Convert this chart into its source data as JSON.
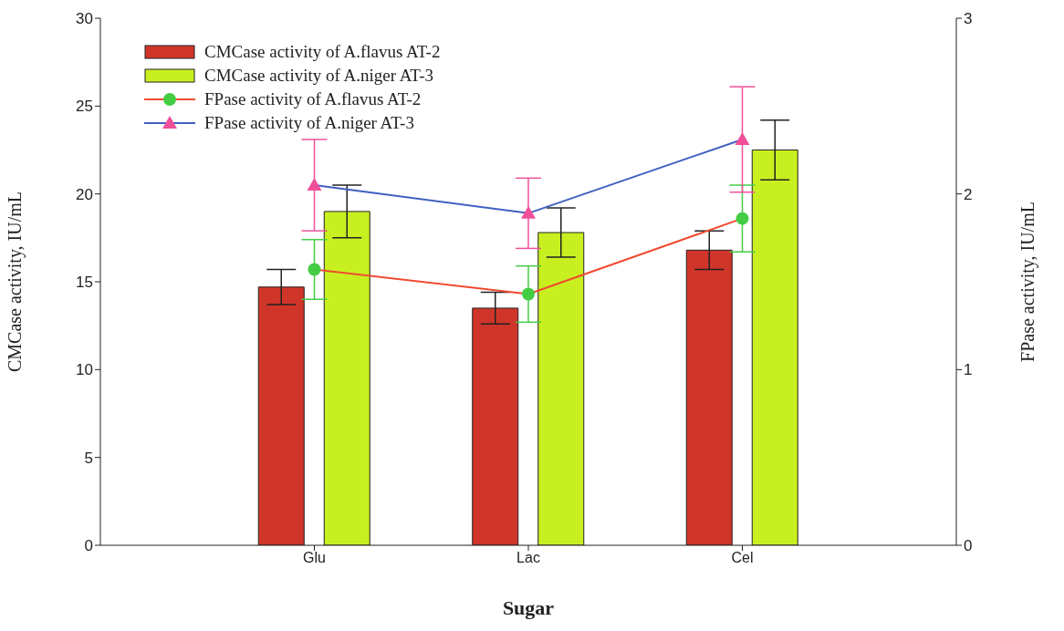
{
  "chart_data": {
    "type": "bar",
    "xlabel": "Sugar",
    "ylabel": "CMCase activity, IU/mL",
    "y2label": "FPase activity, IU/mL",
    "categories": [
      "Glu",
      "Lac",
      "Cel"
    ],
    "series": [
      {
        "name": "CMCase activity of A.flavus AT-2",
        "color": "#d0352a",
        "values": [
          14.7,
          13.5,
          16.8
        ],
        "errors": [
          1.0,
          0.9,
          1.1
        ]
      },
      {
        "name": "CMCase activity of A.niger AT-3",
        "color": "#c8f020",
        "values": [
          19.0,
          17.8,
          22.5
        ],
        "errors": [
          1.5,
          1.4,
          1.7
        ]
      },
      {
        "name": "FPase activity of A.flavus AT-2",
        "type": "line",
        "axis": "y2",
        "marker": "circle",
        "color": "#f04a30",
        "colors": [
          "#44cc44",
          "#44cc44",
          "#44cc44"
        ],
        "values": [
          1.57,
          1.43,
          1.86
        ],
        "errors": [
          0.17,
          0.16,
          0.19
        ]
      },
      {
        "name": "FPase activity of A.niger AT-3",
        "type": "line",
        "axis": "y2",
        "marker": "triangle",
        "color": "#4060c0",
        "colors": [
          "#f0509a",
          "#f0509a",
          "#f0509a"
        ],
        "values": [
          2.05,
          1.89,
          2.31
        ],
        "errors": [
          0.26,
          0.2,
          0.3
        ]
      }
    ],
    "ylim": [
      0,
      30
    ],
    "yticks": [
      0,
      5,
      10,
      15,
      20,
      25,
      30
    ],
    "y2lim": [
      0,
      3
    ],
    "y2ticks": [
      0,
      1,
      2,
      3
    ],
    "grid": false,
    "legend": "top left"
  }
}
